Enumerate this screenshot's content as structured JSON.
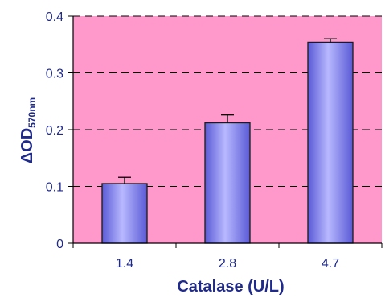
{
  "colors": {
    "plot_background": "#ff99cc",
    "bar_fill_light": "#b8b8ff",
    "bar_fill_dark": "#5a5ad6",
    "bar_outline": "#1b1b1b",
    "gridline": "#000000",
    "axis_text": "#1f2a8a"
  },
  "chart_data": {
    "type": "bar",
    "categories": [
      "1.4",
      "2.8",
      "4.7"
    ],
    "values": [
      0.105,
      0.212,
      0.354
    ],
    "error_bars": [
      0.011,
      0.014,
      0.006
    ],
    "xlabel": "Catalase (U/L)",
    "ylabel": {
      "prefix": "ΔOD",
      "subscript": "570nm"
    },
    "ylim": [
      0,
      0.4
    ],
    "yticks": [
      "0",
      "0.1",
      "0.2",
      "0.3",
      "0.4"
    ],
    "grid": "dashed horizontal"
  }
}
